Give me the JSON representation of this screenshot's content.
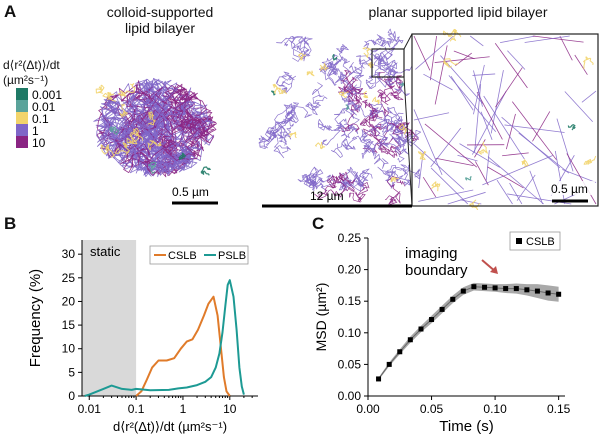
{
  "panel_a": {
    "letter": "A",
    "title_left": [
      "colloid-supported",
      "lipid bilayer"
    ],
    "title_right": "planar supported lipid bilayer",
    "colorbar": {
      "label_lines": [
        "d⟨r²(Δt)⟩/dt",
        "(µm²s⁻¹)"
      ],
      "ticks": [
        "0.001",
        "0.01",
        "0.1",
        "1",
        "10"
      ],
      "colors": [
        "#1f7a66",
        "#5aa39a",
        "#f2d46b",
        "#7f66c8",
        "#8a2483"
      ]
    },
    "scalebars": [
      "0.5 µm",
      "12 µm",
      "0.5 µm"
    ]
  },
  "chart_data": [
    {
      "type": "line",
      "panel": "B",
      "xlabel": "d⟨r²(Δt)⟩/dt (µm²s⁻¹)",
      "ylabel": "Frequency (%)",
      "xscale": "log",
      "xlim": [
        0.007,
        40
      ],
      "ylim": [
        0,
        33
      ],
      "xticks": [
        "0.01",
        "0.1",
        "1",
        "10"
      ],
      "yticks": [
        0,
        5,
        10,
        15,
        20,
        25,
        30
      ],
      "annotation": "static",
      "static_region": [
        0.007,
        0.1
      ],
      "legend": "top-right",
      "series": [
        {
          "name": "CSLB",
          "color": "#e07b2a",
          "x": [
            0.1,
            0.13,
            0.17,
            0.22,
            0.3,
            0.45,
            0.65,
            0.9,
            1.2,
            1.6,
            2.1,
            2.8,
            3.5,
            4.5,
            5.5,
            6.5,
            7.5,
            8.5,
            10
          ],
          "y": [
            0,
            1,
            3.5,
            6,
            7.5,
            7.5,
            8,
            10,
            11.5,
            12,
            14,
            17,
            19.5,
            21,
            17,
            10,
            4,
            1,
            0
          ]
        },
        {
          "name": "PSLB",
          "color": "#1d9a94",
          "x": [
            0.008,
            0.01,
            0.02,
            0.03,
            0.05,
            0.08,
            0.1,
            0.2,
            0.5,
            0.8,
            1.2,
            2,
            3,
            4,
            5,
            6,
            7,
            8,
            9,
            10,
            12,
            14,
            16,
            18,
            20
          ],
          "y": [
            0,
            0.3,
            1.5,
            2.2,
            1.5,
            1.3,
            1.5,
            1.2,
            1.3,
            1.6,
            1.8,
            2.3,
            3,
            4,
            6,
            9,
            13.5,
            19,
            23.5,
            24.5,
            21,
            14,
            6,
            2,
            0.3
          ]
        }
      ]
    },
    {
      "type": "scatter",
      "panel": "C",
      "xlabel": "Time (s)",
      "ylabel": "MSD (µm²)",
      "xlim": [
        0,
        0.155
      ],
      "ylim": [
        0,
        0.25
      ],
      "xticks": [
        0,
        0.05,
        0.1,
        0.15
      ],
      "yticks": [
        0,
        0.05,
        0.1,
        0.15,
        0.2,
        0.25
      ],
      "annotation": [
        "imaging",
        "boundary"
      ],
      "legend": "top-right",
      "series": [
        {
          "name": "CSLB",
          "color": "#000000",
          "band_color": "#9a9a9a",
          "x": [
            0.0083,
            0.0167,
            0.025,
            0.0333,
            0.0417,
            0.05,
            0.0583,
            0.0667,
            0.075,
            0.0833,
            0.0917,
            0.1,
            0.1083,
            0.1167,
            0.125,
            0.1333,
            0.1417,
            0.15
          ],
          "y": [
            0.027,
            0.05,
            0.07,
            0.089,
            0.106,
            0.121,
            0.137,
            0.153,
            0.166,
            0.173,
            0.172,
            0.171,
            0.17,
            0.17,
            0.168,
            0.166,
            0.163,
            0.161
          ],
          "err": [
            0.002,
            0.003,
            0.004,
            0.005,
            0.005,
            0.006,
            0.006,
            0.006,
            0.006,
            0.006,
            0.006,
            0.006,
            0.007,
            0.008,
            0.009,
            0.011,
            0.012,
            0.012
          ]
        }
      ]
    }
  ]
}
